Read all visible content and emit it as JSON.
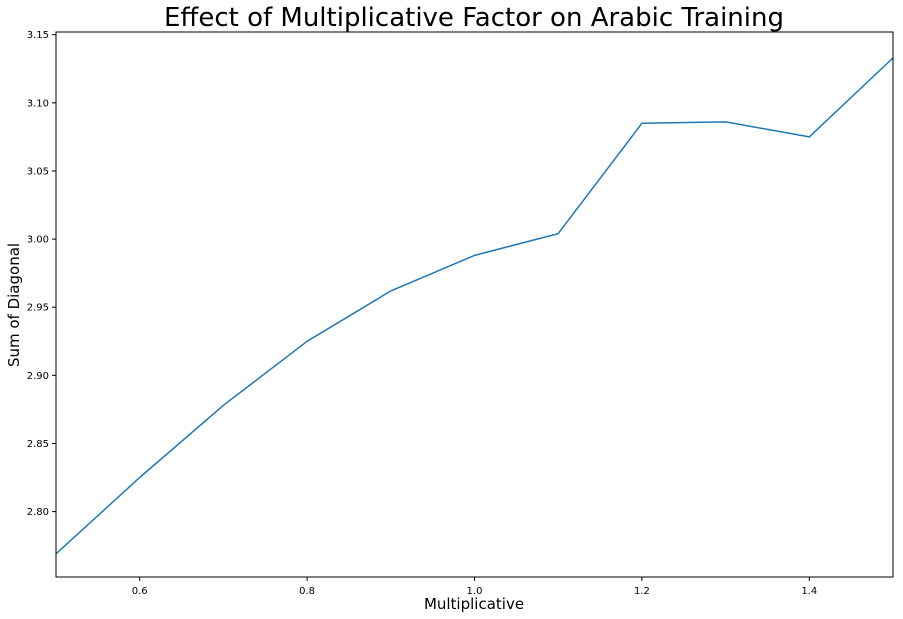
{
  "chart_data": {
    "type": "line",
    "title": "Effect of Multiplicative Factor on Arabic Training",
    "xlabel": "Multiplicative",
    "ylabel": "Sum of Diagonal",
    "xlim": [
      0.5,
      1.5
    ],
    "ylim": [
      2.752,
      3.152
    ],
    "xticks": [
      0.6,
      0.8,
      1.0,
      1.2,
      1.4
    ],
    "xtick_labels": [
      "0.6",
      "0.8",
      "1.0",
      "1.2",
      "1.4"
    ],
    "yticks": [
      2.8,
      2.85,
      2.9,
      2.95,
      3.0,
      3.05,
      3.1,
      3.15
    ],
    "ytick_labels": [
      "2.80",
      "2.85",
      "2.90",
      "2.95",
      "3.00",
      "3.05",
      "3.10",
      "3.15"
    ],
    "grid": false,
    "series": [
      {
        "color": "#1f77b4",
        "x": [
          0.5,
          0.6,
          0.7,
          0.8,
          0.9,
          1.0,
          1.1,
          1.2,
          1.3,
          1.4,
          1.5
        ],
        "y": [
          2.769,
          2.825,
          2.878,
          2.925,
          2.962,
          2.988,
          3.004,
          3.085,
          3.086,
          3.075,
          3.133
        ]
      }
    ]
  }
}
